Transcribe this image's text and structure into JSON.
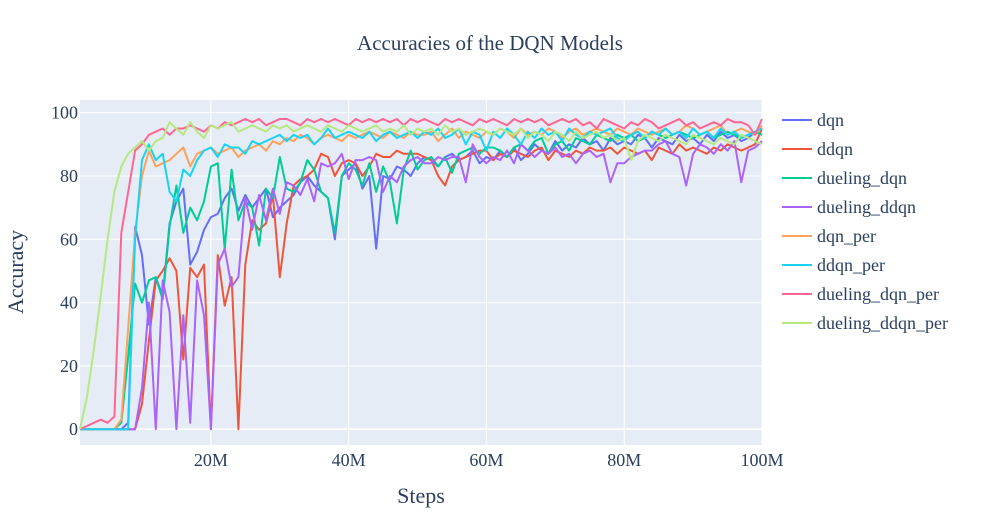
{
  "chart_data": {
    "type": "line",
    "title": "Accuracies of the DQN Models",
    "xlabel": "Steps",
    "ylabel": "Accuracy",
    "xlim": [
      1000000,
      100000000
    ],
    "ylim": [
      -5,
      104
    ],
    "x_ticks": [
      20000000,
      40000000,
      60000000,
      80000000,
      100000000
    ],
    "x_tick_labels": [
      "20M",
      "40M",
      "60M",
      "80M",
      "100M"
    ],
    "y_ticks": [
      0,
      20,
      40,
      60,
      80,
      100
    ],
    "y_tick_labels": [
      "0",
      "20",
      "40",
      "60",
      "80",
      "100"
    ],
    "grid": true,
    "legend_position": "right",
    "background": "#e5ecf6",
    "x": [
      1000000,
      2000000,
      3000000,
      4000000,
      5000000,
      6000000,
      7000000,
      8000000,
      9000000,
      10000000,
      11000000,
      12000000,
      13000000,
      14000000,
      15000000,
      16000000,
      17000000,
      18000000,
      19000000,
      20000000,
      21000000,
      22000000,
      23000000,
      24000000,
      25000000,
      26000000,
      27000000,
      28000000,
      29000000,
      30000000,
      31000000,
      32000000,
      33000000,
      34000000,
      35000000,
      36000000,
      37000000,
      38000000,
      39000000,
      40000000,
      41000000,
      42000000,
      43000000,
      44000000,
      45000000,
      46000000,
      47000000,
      48000000,
      49000000,
      50000000,
      51000000,
      52000000,
      53000000,
      54000000,
      55000000,
      56000000,
      57000000,
      58000000,
      59000000,
      60000000,
      61000000,
      62000000,
      63000000,
      64000000,
      65000000,
      66000000,
      67000000,
      68000000,
      69000000,
      70000000,
      71000000,
      72000000,
      73000000,
      74000000,
      75000000,
      76000000,
      77000000,
      78000000,
      79000000,
      80000000,
      81000000,
      82000000,
      83000000,
      84000000,
      85000000,
      86000000,
      87000000,
      88000000,
      89000000,
      90000000,
      91000000,
      92000000,
      93000000,
      94000000,
      95000000,
      96000000,
      97000000,
      98000000,
      99000000,
      100000000
    ],
    "series": [
      {
        "name": "dqn",
        "color": "#636efa",
        "values": [
          0,
          0,
          0,
          0,
          0,
          0,
          0,
          2,
          64,
          55,
          33,
          48,
          42,
          65,
          72,
          76,
          52,
          56,
          63,
          67,
          68,
          73,
          76,
          69,
          74,
          70,
          73,
          76,
          67,
          70,
          72,
          74,
          78,
          80,
          77,
          75,
          73,
          60,
          80,
          82,
          84,
          76,
          80,
          57,
          80,
          79,
          83,
          82,
          80,
          84,
          86,
          85,
          83,
          86,
          87,
          85,
          86,
          88,
          84,
          86,
          85,
          88,
          86,
          89,
          85,
          87,
          90,
          88,
          87,
          91,
          88,
          90,
          89,
          92,
          90,
          91,
          88,
          92,
          90,
          91,
          90,
          93,
          92,
          89,
          92,
          91,
          90,
          93,
          91,
          92,
          90,
          93,
          91,
          94,
          92,
          93,
          91,
          92,
          94,
          93
        ]
      },
      {
        "name": "ddqn",
        "color": "#ef553b",
        "values": [
          0,
          0,
          0,
          0,
          0,
          0,
          0,
          0,
          0,
          8,
          28,
          47,
          50,
          54,
          50,
          22,
          51,
          48,
          52,
          0,
          55,
          39,
          48,
          0,
          52,
          66,
          63,
          65,
          74,
          48,
          65,
          77,
          79,
          80,
          82,
          87,
          86,
          80,
          84,
          85,
          84,
          80,
          83,
          87,
          86,
          86,
          88,
          87,
          87,
          87,
          86,
          85,
          80,
          77,
          83,
          85,
          86,
          87,
          88,
          88,
          85,
          87,
          86,
          88,
          87,
          86,
          88,
          89,
          85,
          88,
          87,
          86,
          88,
          87,
          89,
          88,
          88,
          89,
          87,
          89,
          88,
          87,
          88,
          85,
          89,
          88,
          87,
          90,
          88,
          89,
          88,
          87,
          89,
          88,
          90,
          89,
          88,
          89,
          90,
          95
        ]
      },
      {
        "name": "dueling_dqn",
        "color": "#00cc96",
        "values": [
          0,
          0,
          0,
          0,
          0,
          0,
          2,
          23,
          46,
          40,
          47,
          48,
          41,
          64,
          77,
          62,
          70,
          66,
          72,
          83,
          84,
          57,
          82,
          66,
          72,
          70,
          58,
          76,
          73,
          86,
          76,
          75,
          78,
          85,
          82,
          75,
          73,
          62,
          80,
          84,
          82,
          77,
          84,
          75,
          83,
          78,
          65,
          82,
          88,
          82,
          85,
          86,
          83,
          86,
          81,
          87,
          88,
          89,
          87,
          89,
          89,
          88,
          86,
          89,
          90,
          88,
          91,
          92,
          87,
          90,
          91,
          88,
          92,
          91,
          90,
          93,
          92,
          91,
          93,
          92,
          93,
          91,
          92,
          94,
          93,
          92,
          93,
          94,
          93,
          92,
          93,
          94,
          92,
          93,
          94,
          93,
          92,
          93,
          94,
          93
        ]
      },
      {
        "name": "dueling_ddqn",
        "color": "#ab63fa",
        "values": [
          0,
          0,
          0,
          0,
          0,
          0,
          0,
          0,
          0,
          13,
          40,
          0,
          47,
          37,
          0,
          36,
          2,
          47,
          36,
          0,
          52,
          57,
          45,
          48,
          73,
          63,
          74,
          66,
          76,
          68,
          78,
          77,
          74,
          79,
          72,
          84,
          83,
          84,
          87,
          79,
          85,
          85,
          86,
          85,
          75,
          80,
          78,
          83,
          85,
          86,
          84,
          84,
          86,
          85,
          86,
          86,
          78,
          90,
          86,
          84,
          86,
          85,
          88,
          84,
          90,
          88,
          86,
          88,
          87,
          89,
          86,
          87,
          84,
          87,
          88,
          86,
          87,
          78,
          84,
          84,
          86,
          87,
          88,
          88,
          90,
          91,
          87,
          86,
          77,
          87,
          90,
          89,
          87,
          90,
          88,
          91,
          78,
          88,
          89,
          91
        ]
      },
      {
        "name": "dqn_per",
        "color": "#ffa15a",
        "values": [
          0,
          0,
          0,
          0,
          0,
          0,
          3,
          32,
          62,
          80,
          88,
          83,
          84,
          85,
          87,
          89,
          83,
          87,
          88,
          89,
          87,
          88,
          89,
          86,
          88,
          89,
          90,
          88,
          91,
          90,
          92,
          91,
          93,
          92,
          90,
          92,
          93,
          92,
          91,
          93,
          92,
          93,
          94,
          93,
          92,
          94,
          93,
          92,
          94,
          93,
          93,
          94,
          91,
          93,
          95,
          92,
          94,
          93,
          92,
          94,
          93,
          95,
          94,
          92,
          95,
          93,
          94,
          93,
          95,
          94,
          92,
          94,
          95,
          93,
          94,
          95,
          94,
          93,
          95,
          94,
          93,
          95,
          94,
          93,
          94,
          95,
          93,
          94,
          96,
          95,
          93,
          94,
          95,
          96,
          93,
          94,
          95,
          94,
          93,
          96
        ]
      },
      {
        "name": "ddqn_per",
        "color": "#19d3f3",
        "values": [
          0,
          0,
          0,
          0,
          0,
          0,
          0,
          0,
          60,
          85,
          90,
          85,
          87,
          75,
          72,
          82,
          80,
          85,
          88,
          89,
          86,
          90,
          89,
          89,
          87,
          91,
          90,
          91,
          92,
          93,
          91,
          93,
          92,
          93,
          90,
          92,
          95,
          92,
          93,
          94,
          93,
          92,
          94,
          91,
          93,
          94,
          92,
          93,
          94,
          92,
          94,
          93,
          95,
          92,
          93,
          95,
          90,
          94,
          93,
          88,
          94,
          92,
          95,
          93,
          90,
          94,
          92,
          95,
          93,
          94,
          91,
          95,
          93,
          92,
          94,
          93,
          94,
          95,
          92,
          91,
          93,
          94,
          92,
          94,
          93,
          95,
          93,
          94,
          92,
          95,
          93,
          94,
          92,
          95,
          93,
          94,
          92,
          93,
          94,
          95
        ]
      },
      {
        "name": "dueling_dqn_per",
        "color": "#ff6692",
        "values": [
          0,
          1,
          2,
          3,
          2,
          4,
          62,
          75,
          88,
          90,
          93,
          94,
          95,
          93,
          95,
          95,
          96,
          95,
          94,
          96,
          95,
          97,
          96,
          97,
          98,
          97,
          98,
          96,
          97,
          98,
          98,
          97,
          96,
          98,
          97,
          98,
          97,
          98,
          97,
          96,
          98,
          97,
          98,
          97,
          98,
          97,
          98,
          96,
          98,
          97,
          98,
          97,
          96,
          98,
          97,
          98,
          97,
          96,
          98,
          97,
          98,
          97,
          96,
          98,
          97,
          98,
          97,
          98,
          96,
          97,
          98,
          97,
          98,
          96,
          97,
          95,
          98,
          97,
          96,
          95,
          97,
          96,
          98,
          97,
          95,
          96,
          97,
          98,
          96,
          97,
          95,
          96,
          97,
          96,
          98,
          97,
          97,
          96,
          93,
          98
        ]
      },
      {
        "name": "dueling_ddqn_per",
        "color": "#b6e880",
        "values": [
          0,
          10,
          25,
          42,
          60,
          75,
          83,
          87,
          89,
          91,
          88,
          91,
          92,
          97,
          95,
          93,
          97,
          94,
          92,
          96,
          95,
          96,
          97,
          94,
          95,
          96,
          95,
          94,
          96,
          95,
          96,
          94,
          95,
          96,
          95,
          94,
          96,
          95,
          94,
          96,
          95,
          94,
          95,
          96,
          94,
          95,
          94,
          96,
          93,
          95,
          94,
          95,
          93,
          96,
          94,
          95,
          93,
          94,
          95,
          94,
          93,
          95,
          94,
          93,
          95,
          92,
          94,
          93,
          91,
          94,
          93,
          91,
          94,
          92,
          93,
          94,
          92,
          93,
          91,
          92,
          85,
          91,
          93,
          92,
          91,
          93,
          92,
          91,
          90,
          93,
          92,
          91,
          90,
          92,
          91,
          90,
          93,
          92,
          91,
          90
        ]
      }
    ]
  }
}
